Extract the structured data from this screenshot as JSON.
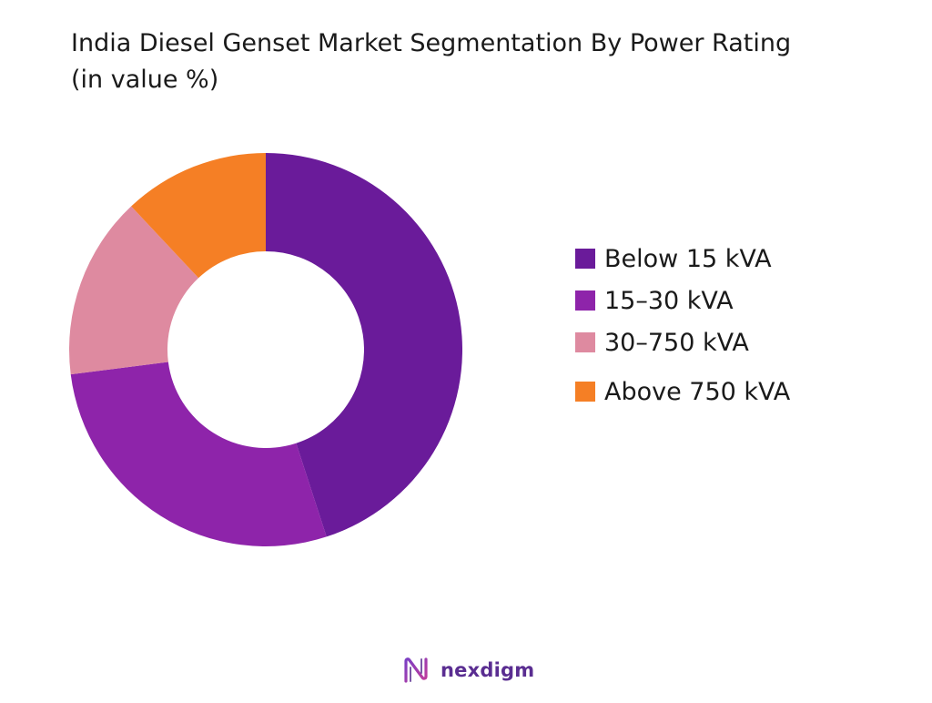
{
  "title": {
    "line1": "India Diesel Genset Market Segmentation By Power Rating",
    "line2": "(in value %)"
  },
  "chart_data": {
    "type": "pie",
    "variant": "donut",
    "title": "India Diesel Genset Market Segmentation By Power Rating (in value %)",
    "start_angle_deg": 0,
    "direction": "clockwise",
    "legend_position": "right",
    "series": [
      {
        "name": "Below 15 kVA",
        "value": 45,
        "color": "#6a1b9a"
      },
      {
        "name": "15–30 kVA",
        "value": 28,
        "color": "#8e24aa"
      },
      {
        "name": "30–750 kVA",
        "value": 15,
        "color": "#de8aa0"
      },
      {
        "name": "Above 750 kVA",
        "value": 12,
        "color": "#f57f25"
      }
    ]
  },
  "legend": {
    "items": [
      {
        "label": "Below 15 kVA",
        "color": "#6a1b9a"
      },
      {
        "label": "15–30 kVA",
        "color": "#8e24aa"
      },
      {
        "label": "30–750 kVA",
        "color": "#de8aa0"
      },
      {
        "label": "Above 750 kVA",
        "color": "#f57f25"
      }
    ]
  },
  "brand": {
    "name": "nexdigm",
    "icon": "nexdigm-logo-icon",
    "color": "#5a2d91"
  }
}
